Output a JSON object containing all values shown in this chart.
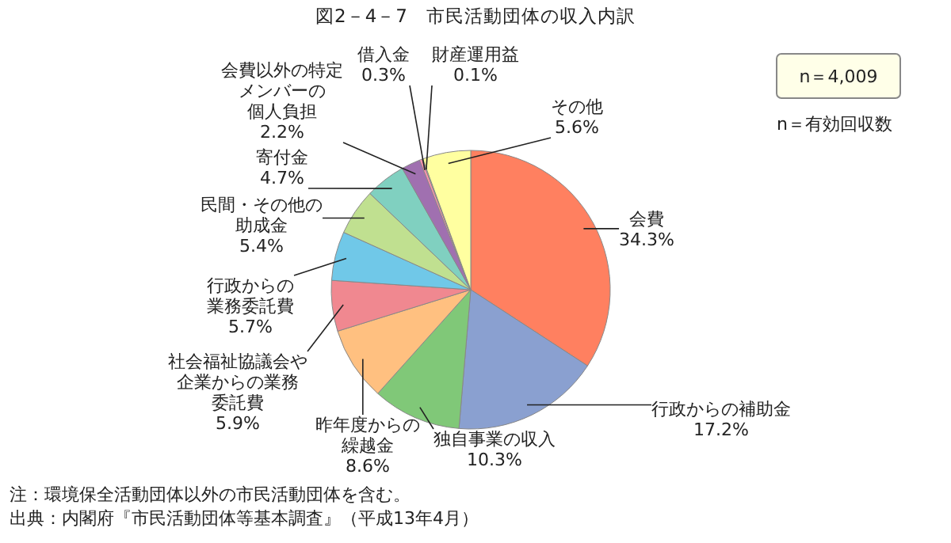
{
  "chart_data": {
    "type": "pie",
    "title": "図2－4－7　市民活動団体の収入内訳",
    "categories": [
      "会費",
      "行政からの補助金",
      "独自事業の収入",
      "昨年度からの繰越金",
      "社会福祉協議会や企業からの業務委託費",
      "行政からの業務委託費",
      "民間・その他の助成金",
      "寄付金",
      "会費以外の特定メンバーの個人負担",
      "借入金",
      "財産運用益",
      "その他"
    ],
    "values": [
      34.3,
      17.2,
      10.3,
      8.6,
      5.9,
      5.7,
      5.4,
      4.7,
      2.2,
      0.3,
      0.1,
      5.6
    ],
    "value_labels": [
      "34.3%",
      "17.2%",
      "10.3%",
      "8.6%",
      "5.9%",
      "5.7%",
      "5.4%",
      "4.7%",
      "2.2%",
      "0.3%",
      "0.1%",
      "5.6%"
    ],
    "colors": [
      "#ff8060",
      "#8aa0d0",
      "#80c878",
      "#ffc080",
      "#f08890",
      "#70c8e8",
      "#c0e090",
      "#80d0c0",
      "#a070b0",
      "#ff90b0",
      "#e0e0e0",
      "#ffffa0"
    ],
    "annotations": [
      "n＝4,009",
      "n＝有効回収数",
      "注：環境保全活動団体以外の市民活動団体を含む。",
      "出典：内閣府『市民活動団体等基本調査』（平成13年4月）"
    ]
  }
}
